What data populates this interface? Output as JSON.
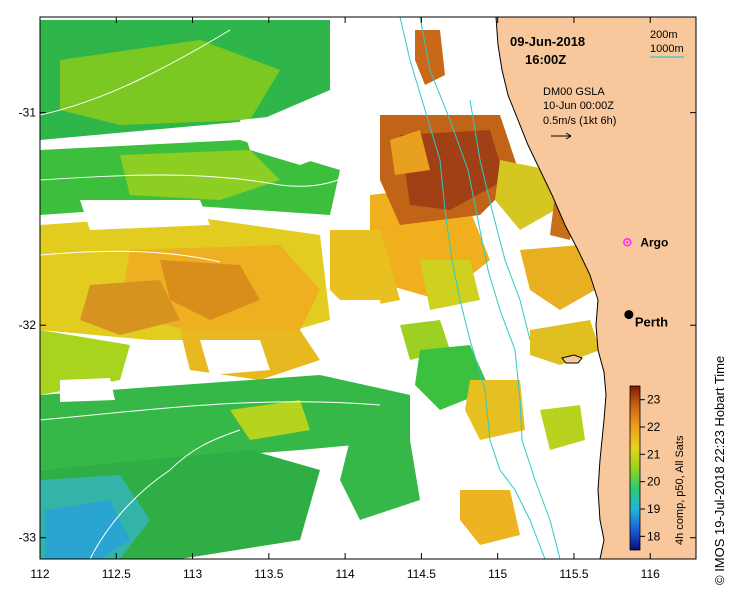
{
  "map": {
    "date": "09-Jun-2018",
    "time": "16:00Z",
    "product": "DM00 GSLA",
    "gsla_time": "10-Jun 00:00Z",
    "velocity_scale": "0.5m/s (1kt 6h)",
    "contour_200": "200m",
    "contour_1000": "1000m",
    "argo_label": "Argo",
    "city_label": "Perth",
    "credit": "© IMOS 19-Jul-2018 22:23 Hobart Time",
    "colorbar_title": "4h comp, p50, All Sats"
  },
  "axes": {
    "x_ticks": [
      "112",
      "112.5",
      "113",
      "113.5",
      "114",
      "114.5",
      "115",
      "115.5",
      "116"
    ],
    "y_ticks": [
      "-31",
      "-32",
      "-33"
    ],
    "x_range": [
      112,
      116.3
    ],
    "y_range": [
      -33.1,
      -30.55
    ]
  },
  "colorbar": {
    "ticks": [
      "23",
      "22",
      "21",
      "20",
      "19",
      "18"
    ],
    "range": [
      17.5,
      23.5
    ]
  },
  "colors": {
    "land": "#f8c89c",
    "contour_200": "#2ec8c8",
    "contour_1000": "#2ec8c8",
    "argo": "#ff22ff"
  },
  "points": {
    "argo": {
      "lon": 115.85,
      "lat": -31.61
    },
    "perth": {
      "lon": 115.86,
      "lat": -31.95
    }
  }
}
